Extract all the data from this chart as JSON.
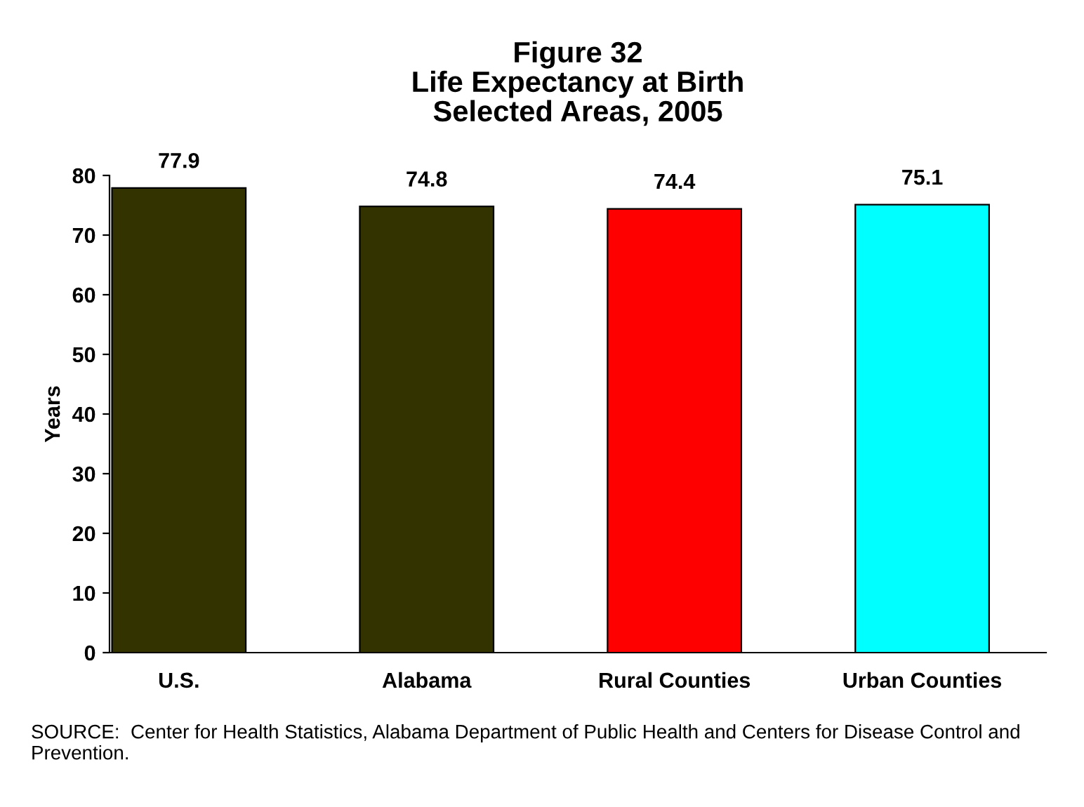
{
  "chart_data": {
    "type": "bar",
    "title": "Figure 32\nLife Expectancy at Birth\nSelected Areas, 2005",
    "ylabel": "Years",
    "categories": [
      "U.S.",
      "Alabama",
      "Rural Counties",
      "Urban Counties"
    ],
    "values": [
      77.9,
      74.8,
      74.4,
      75.1
    ],
    "colors": [
      "#333300",
      "#333300",
      "#ff0000",
      "#00ffff"
    ],
    "ylim": [
      0,
      80
    ],
    "yticks": [
      0,
      10,
      20,
      30,
      40,
      50,
      60,
      70,
      80
    ],
    "grid": false,
    "data_labels": true,
    "annotations": [
      "SOURCE:  Center for Health Statistics, Alabama Department of Public Health and Centers for Disease Control and Prevention."
    ]
  }
}
